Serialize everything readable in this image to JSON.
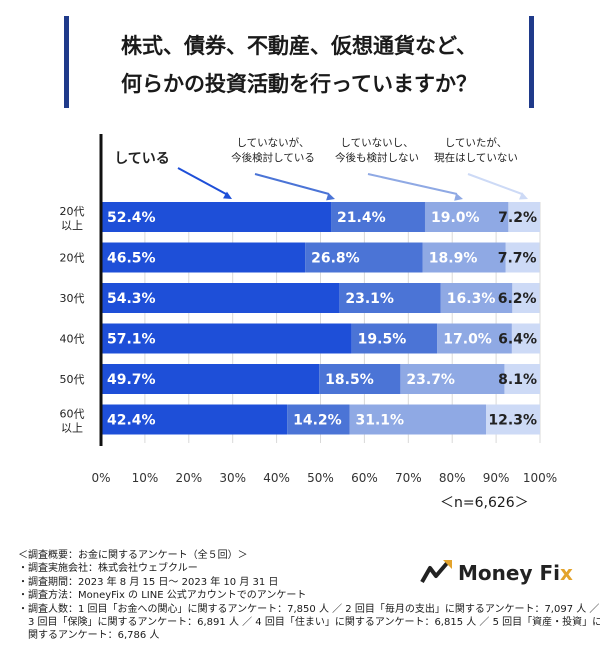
{
  "title": {
    "line1": "株式、債券、不動産、仮想通貨など、",
    "line2": "何らかの投資活動を行っていますか？"
  },
  "chart_data": {
    "type": "bar",
    "orientation": "horizontal-stacked",
    "categories": [
      [
        "20代",
        "以上"
      ],
      [
        "20代"
      ],
      [
        "30代"
      ],
      [
        "40代"
      ],
      [
        "50代"
      ],
      [
        "60代",
        "以上"
      ]
    ],
    "series": [
      {
        "name": "している",
        "color": "#1e4fd8",
        "values": [
          52.4,
          46.5,
          54.3,
          57.1,
          49.7,
          42.4
        ]
      },
      {
        "name": "していないが、今後検討している",
        "color": "#4b74d6",
        "values": [
          21.4,
          26.8,
          23.1,
          19.5,
          18.5,
          14.2
        ]
      },
      {
        "name": "していないし、今後も検討しない",
        "color": "#8fa9e4",
        "values": [
          19.0,
          18.9,
          16.3,
          17.0,
          23.7,
          31.1
        ]
      },
      {
        "name": "していたが、現在はしていない",
        "color": "#cddaf6",
        "values": [
          7.2,
          7.7,
          6.2,
          6.4,
          8.1,
          12.3
        ]
      }
    ],
    "legend_labels": [
      [
        "している"
      ],
      [
        "していないが、",
        "今後検討している"
      ],
      [
        "していないし、",
        "今後も検討しない"
      ],
      [
        "していたが、",
        "現在はしていない"
      ]
    ],
    "x_ticks": [
      "0%",
      "10%",
      "20%",
      "30%",
      "40%",
      "50%",
      "60%",
      "70%",
      "80%",
      "90%",
      "100%"
    ],
    "xlim": [
      0,
      100
    ],
    "unit": "%"
  },
  "sample_size": "＜n=6,626＞",
  "notes": [
    "＜調査概要：お金に関するアンケート（全５回）＞",
    "・調査実施会社：株式会社ウェブクルー",
    "・調査期間：2023 年 8 月 15 日〜 2023 年 10 月 31 日",
    "・調査方法：MoneyFix の LINE 公式アカウントでのアンケート",
    "・調査人数：1 回目「お金への関心」に関するアンケート：7,850 人 ／ 2 回目「毎月の支出」に関するアンケート：7,097 人 ／",
    "　3 回目「保険」に関するアンケート：6,891 人 ／ 4 回目「住まい」に関するアンケート：6,815 人 ／ 5 回目「資産・投資」に",
    "　関するアンケート：6,786 人"
  ],
  "logo": {
    "text_main": "Money Fi",
    "text_accent": "x"
  }
}
